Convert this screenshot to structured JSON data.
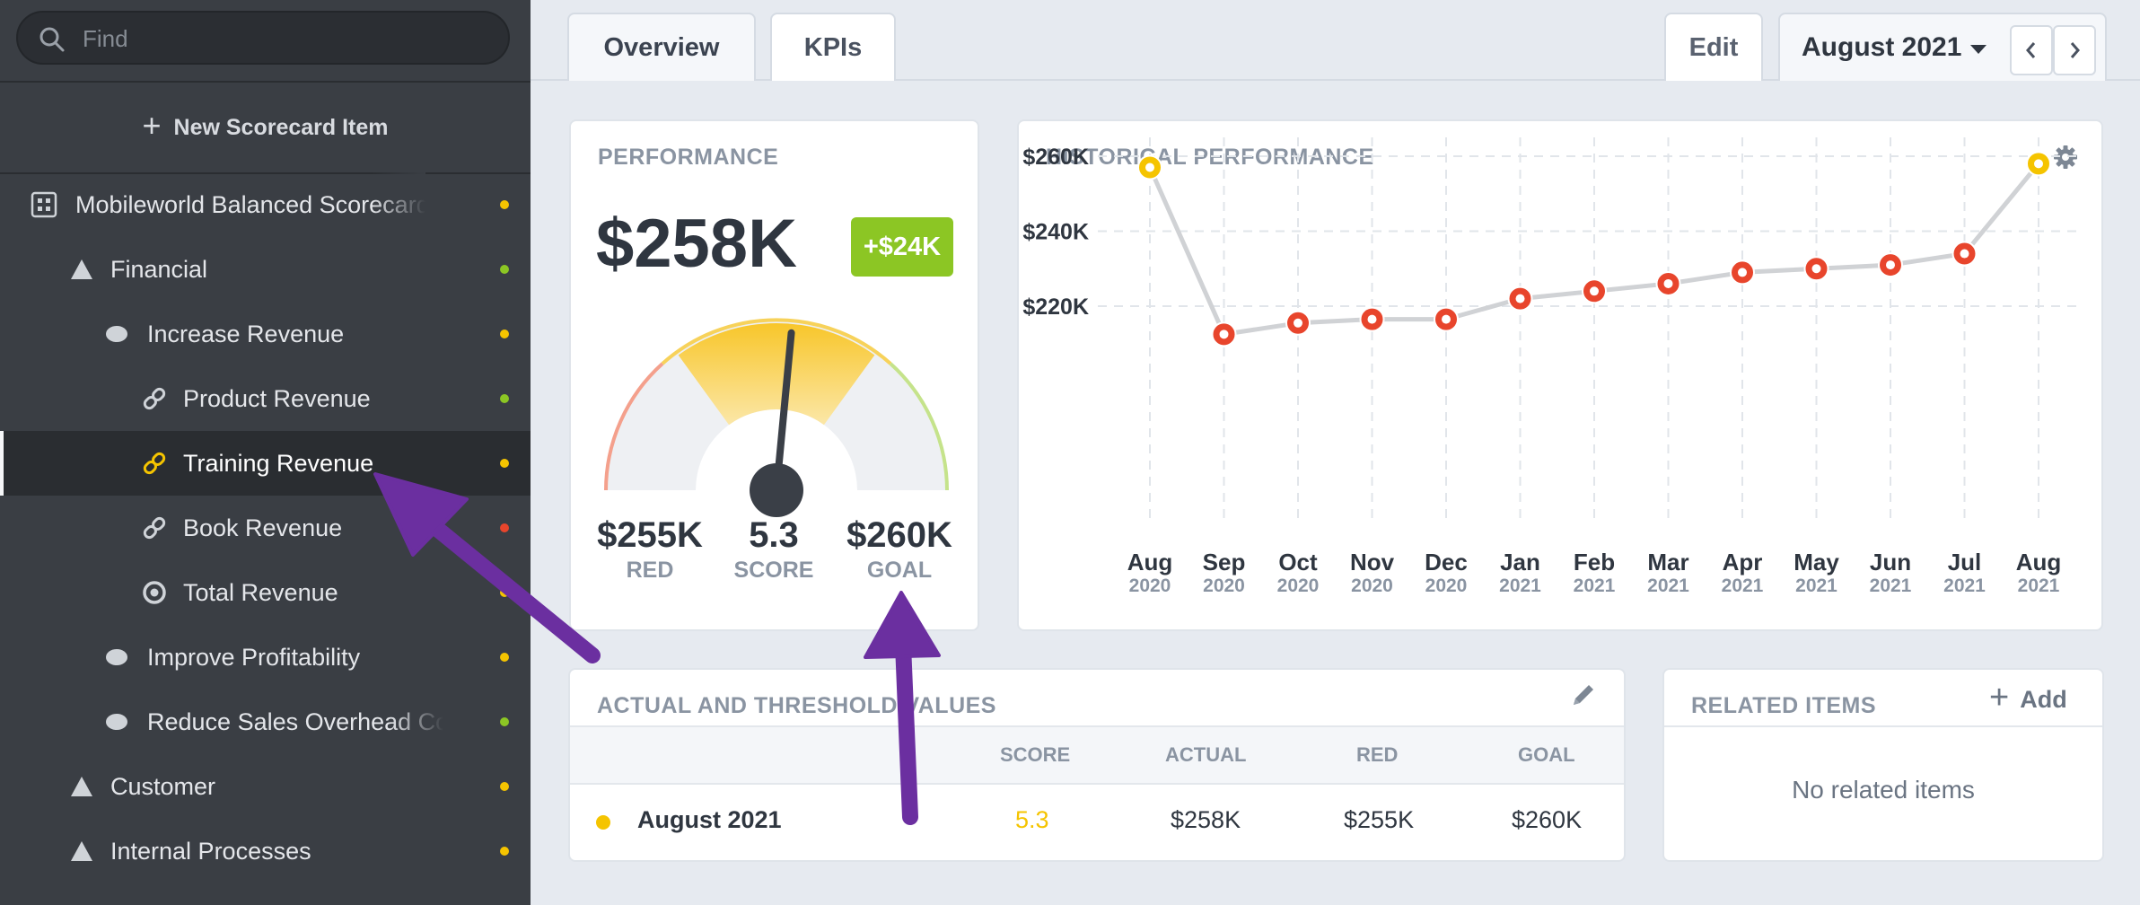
{
  "search": {
    "placeholder": "Find"
  },
  "sidebar": {
    "new_item_label": "New Scorecard Item",
    "items": [
      {
        "label": "Mobileworld Balanced Scorecard",
        "icon": "scorecard-icon",
        "status": "#f5c400"
      },
      {
        "label": "Financial",
        "icon": "triangle-icon",
        "status": "#8cc624"
      },
      {
        "label": "Increase Revenue",
        "icon": "oval-icon",
        "status": "#f5c400"
      },
      {
        "label": "Product Revenue",
        "icon": "link-icon",
        "status": "#8cc624"
      },
      {
        "label": "Training Revenue",
        "icon": "link-icon",
        "status": "#f5c400"
      },
      {
        "label": "Book Revenue",
        "icon": "link-icon",
        "status": "#e8452c"
      },
      {
        "label": "Total Revenue",
        "icon": "target-icon",
        "status": "#f5c400"
      },
      {
        "label": "Improve Profitability",
        "icon": "oval-icon",
        "status": "#f5c400"
      },
      {
        "label": "Reduce Sales Overhead Costs",
        "icon": "oval-icon",
        "status": "#8cc624"
      },
      {
        "label": "Customer",
        "icon": "triangle-icon",
        "status": "#f5c400"
      },
      {
        "label": "Internal Processes",
        "icon": "triangle-icon",
        "status": "#f5c400"
      }
    ]
  },
  "tabs": {
    "overview": "Overview",
    "kpis": "KPIs"
  },
  "toolbar": {
    "edit": "Edit",
    "month": "August 2021"
  },
  "performance": {
    "title": "PERFORMANCE",
    "value": "$258K",
    "delta": "+$24K",
    "red_value": "$255K",
    "red_label": "RED",
    "score_value": "5.3",
    "score_label": "SCORE",
    "goal_value": "$260K",
    "goal_label": "GOAL",
    "gauge_score": 5.3,
    "gauge_max": 10
  },
  "historical": {
    "title": "HISTORICAL PERFORMANCE"
  },
  "chart_data": {
    "type": "line",
    "title": "HISTORICAL PERFORMANCE",
    "x": [
      "Aug 2020",
      "Sep 2020",
      "Oct 2020",
      "Nov 2020",
      "Dec 2020",
      "Jan 2021",
      "Feb 2021",
      "Mar 2021",
      "Apr 2021",
      "May 2021",
      "Jun 2021",
      "Jul 2021",
      "Aug 2021"
    ],
    "x_months": [
      "Aug",
      "Sep",
      "Oct",
      "Nov",
      "Dec",
      "Jan",
      "Feb",
      "Mar",
      "Apr",
      "May",
      "Jun",
      "Jul",
      "Aug"
    ],
    "x_years": [
      "2020",
      "2020",
      "2020",
      "2020",
      "2020",
      "2021",
      "2021",
      "2021",
      "2021",
      "2021",
      "2021",
      "2021",
      "2021"
    ],
    "values": [
      257,
      212.5,
      215.5,
      216.5,
      216.5,
      222,
      224,
      226,
      229,
      230,
      231,
      234,
      258
    ],
    "point_colors": [
      "#f5c400",
      "#e8452c",
      "#e8452c",
      "#e8452c",
      "#e8452c",
      "#e8452c",
      "#e8452c",
      "#e8452c",
      "#e8452c",
      "#e8452c",
      "#e8452c",
      "#e8452c",
      "#f5c400"
    ],
    "yticks": [
      260,
      240,
      220
    ],
    "ytick_labels": [
      "$260K",
      "$240K",
      "$220K"
    ],
    "ylim": [
      205,
      265
    ],
    "grid": true
  },
  "actual_table": {
    "title": "ACTUAL AND THRESHOLD VALUES",
    "headers": {
      "score": "SCORE",
      "actual": "ACTUAL",
      "red": "RED",
      "goal": "GOAL"
    },
    "row": {
      "period": "August 2021",
      "score": "5.3",
      "actual": "$258K",
      "red": "$255K",
      "goal": "$260K"
    }
  },
  "related": {
    "title": "RELATED ITEMS",
    "add": "Add",
    "empty": "No related items"
  },
  "colors": {
    "yellow": "#f5c400",
    "green": "#8cc624",
    "red": "#e8452c",
    "annotation": "#6b2fa0"
  }
}
